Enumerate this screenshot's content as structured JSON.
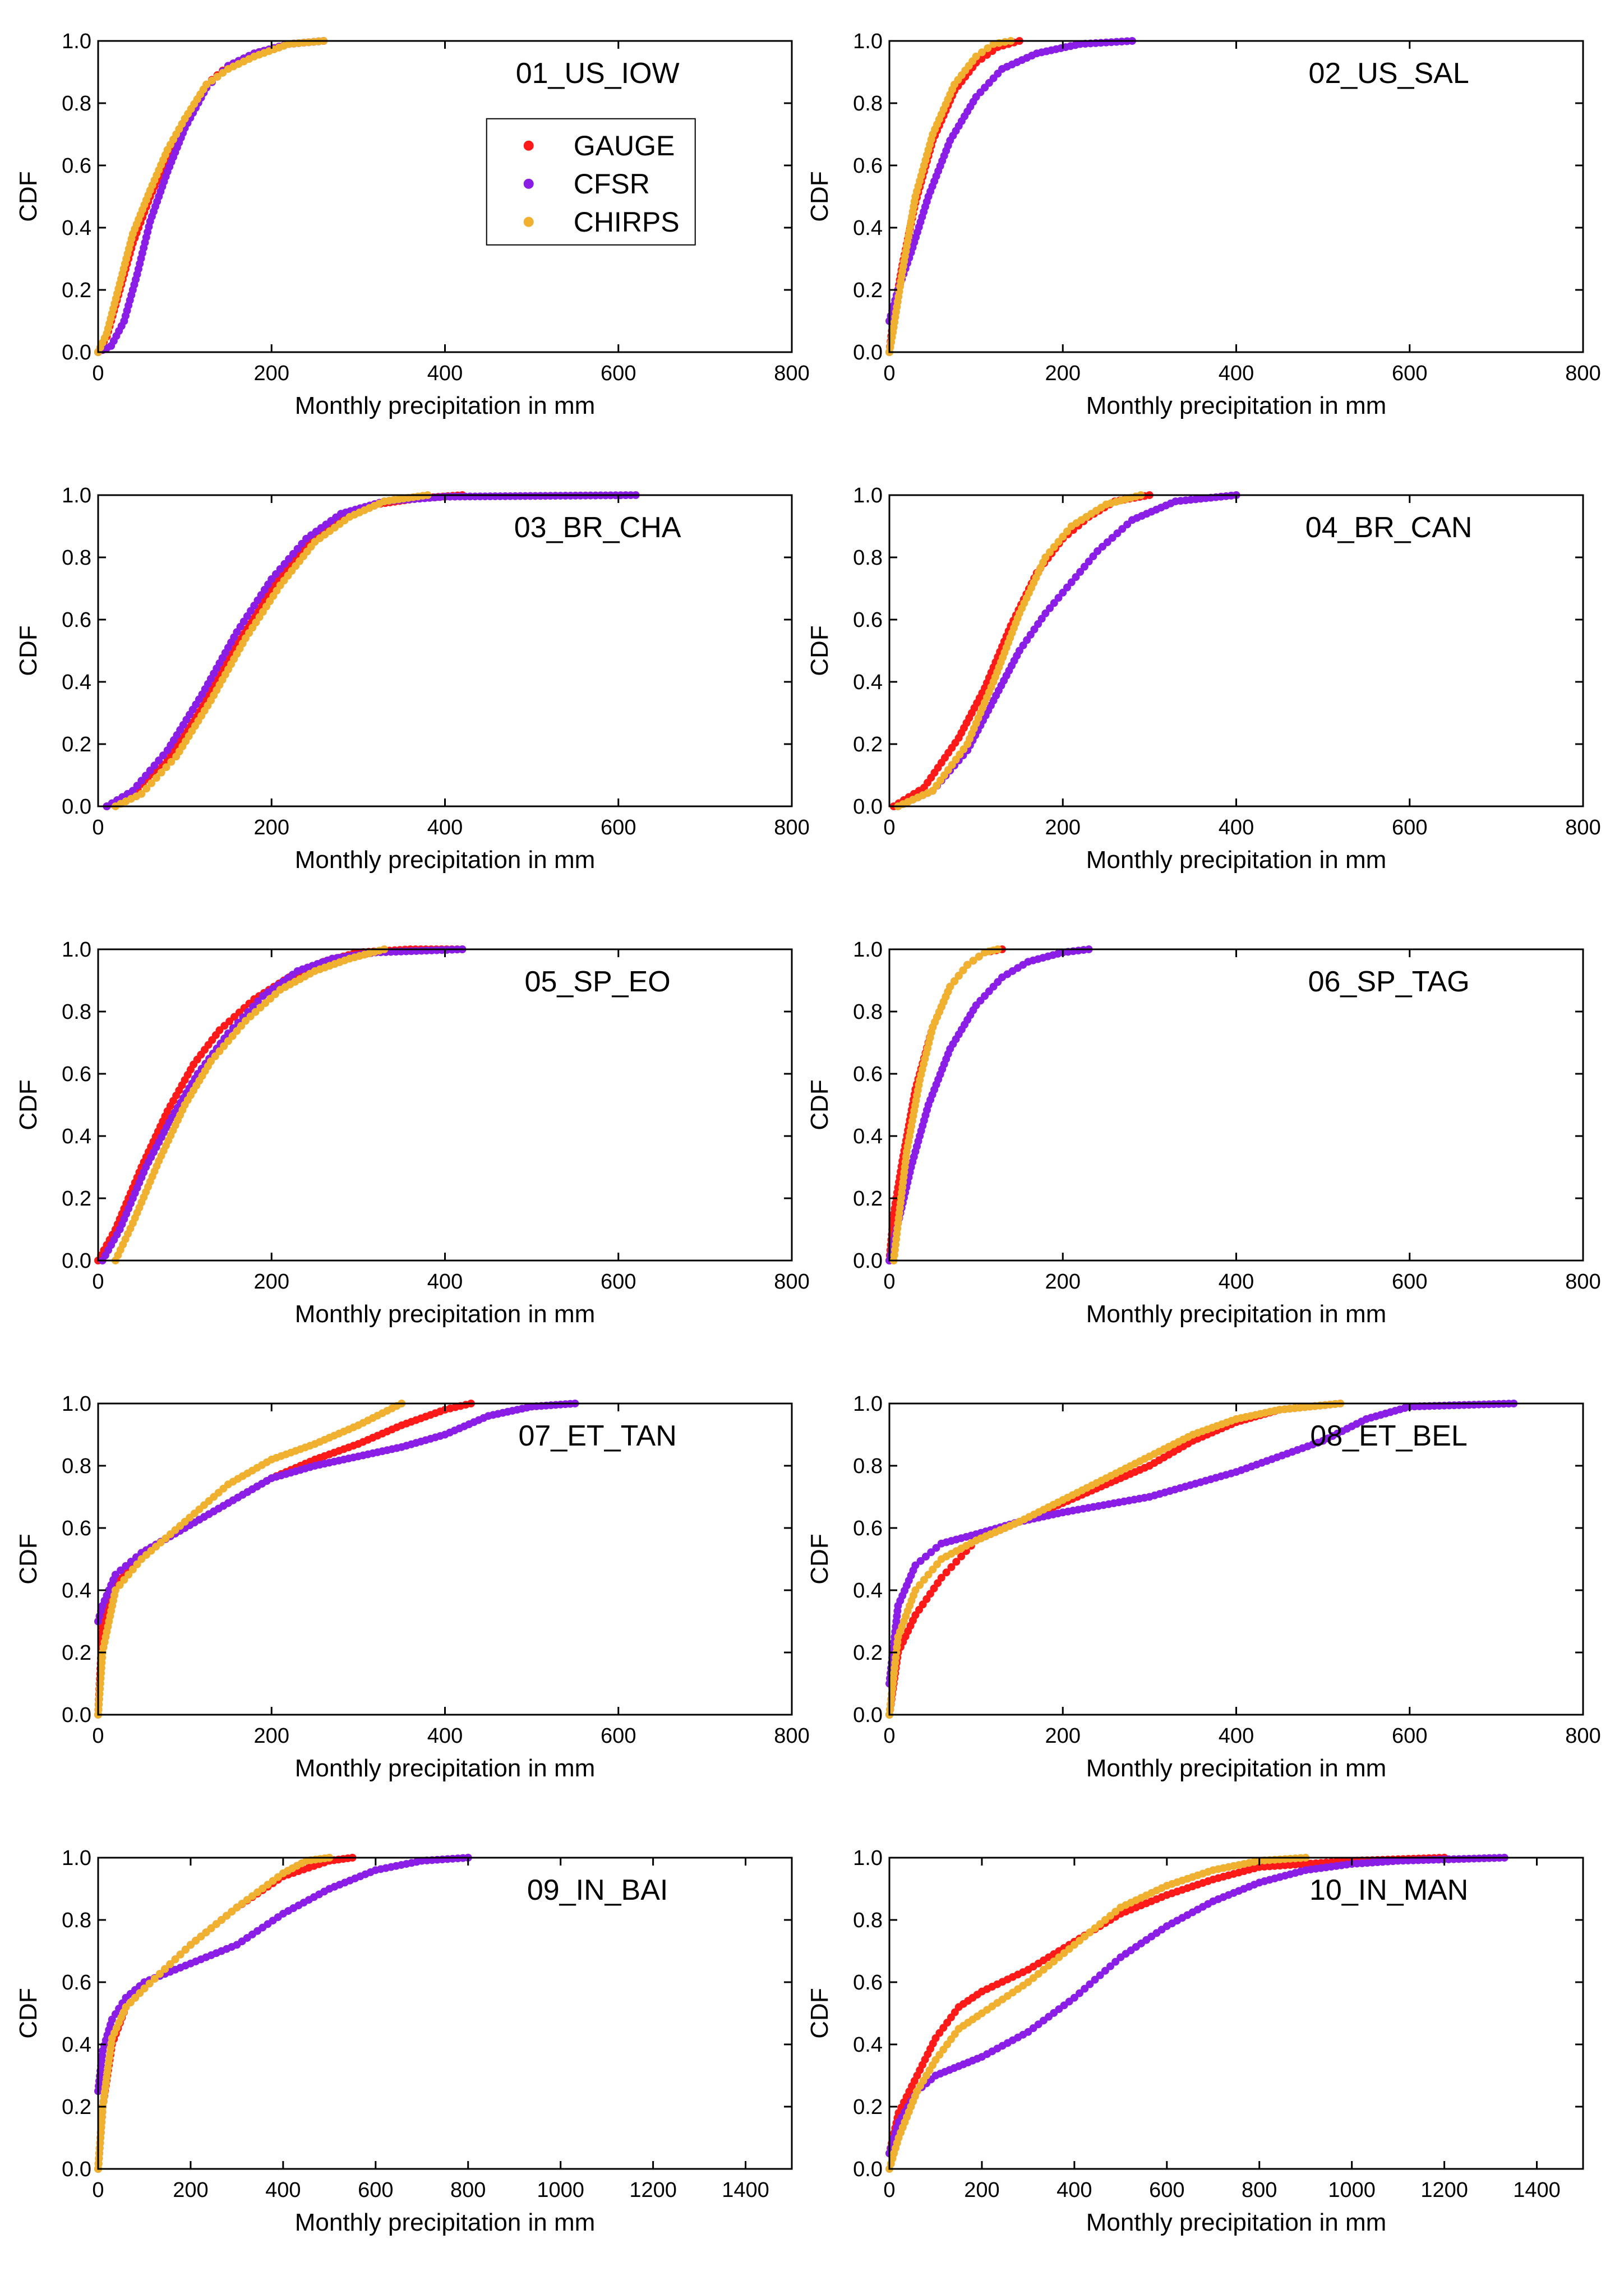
{
  "figure": {
    "colors": {
      "GAUGE": "#ff1a1a",
      "CFSR": "#8a1ee6",
      "CHIRPS": "#f0b030"
    },
    "legend": {
      "entries": [
        "GAUGE",
        "CFSR",
        "CHIRPS"
      ],
      "placement": "inside panel 01_US_IOW, upper-center-right"
    }
  },
  "chart_data": [
    {
      "type": "scatter",
      "title": "01_US_IOW",
      "xlabel": "Monthly precipitation in mm",
      "ylabel": "CDF",
      "xlim": [
        0,
        800
      ],
      "ylim": [
        0,
        1
      ],
      "xticks": [
        "0",
        "200",
        "400",
        "600",
        "800"
      ],
      "yticks": [
        "0.0",
        "0.2",
        "0.4",
        "0.6",
        "0.8",
        "1.0"
      ],
      "series": [
        {
          "name": "GAUGE",
          "x": [
            0,
            10,
            25,
            40,
            60,
            80,
            100,
            125,
            150,
            180,
            220,
            260
          ],
          "y": [
            0,
            0.05,
            0.2,
            0.35,
            0.5,
            0.63,
            0.74,
            0.86,
            0.92,
            0.96,
            0.99,
            1.0
          ]
        },
        {
          "name": "CFSR",
          "x": [
            0,
            15,
            30,
            45,
            60,
            80,
            100,
            125,
            150,
            180,
            220,
            260
          ],
          "y": [
            0,
            0.02,
            0.1,
            0.25,
            0.42,
            0.58,
            0.72,
            0.85,
            0.92,
            0.96,
            0.99,
            1.0
          ]
        },
        {
          "name": "CHIRPS",
          "x": [
            0,
            10,
            25,
            40,
            60,
            80,
            100,
            125,
            150,
            180,
            220,
            260
          ],
          "y": [
            0,
            0.06,
            0.22,
            0.38,
            0.52,
            0.65,
            0.75,
            0.86,
            0.91,
            0.95,
            0.99,
            1.0
          ]
        }
      ]
    },
    {
      "type": "scatter",
      "title": "02_US_SAL",
      "xlabel": "Monthly precipitation in mm",
      "ylabel": "CDF",
      "xlim": [
        0,
        800
      ],
      "ylim": [
        0,
        1
      ],
      "xticks": [
        "0",
        "200",
        "400",
        "600",
        "800"
      ],
      "yticks": [
        "0.0",
        "0.2",
        "0.4",
        "0.6",
        "0.8",
        "1.0"
      ],
      "series": [
        {
          "name": "GAUGE",
          "x": [
            0,
            5,
            15,
            30,
            50,
            75,
            100,
            125,
            150
          ],
          "y": [
            0,
            0.12,
            0.28,
            0.48,
            0.68,
            0.84,
            0.93,
            0.98,
            1.0
          ]
        },
        {
          "name": "CFSR",
          "x": [
            0,
            10,
            25,
            45,
            70,
            100,
            130,
            170,
            220,
            280
          ],
          "y": [
            0.1,
            0.2,
            0.32,
            0.5,
            0.68,
            0.82,
            0.91,
            0.96,
            0.99,
            1.0
          ]
        },
        {
          "name": "CHIRPS",
          "x": [
            0,
            5,
            15,
            30,
            50,
            75,
            100,
            120,
            140
          ],
          "y": [
            0,
            0.08,
            0.26,
            0.5,
            0.7,
            0.86,
            0.95,
            0.99,
            1.0
          ]
        }
      ]
    },
    {
      "type": "scatter",
      "title": "03_BR_CHA",
      "xlabel": "Monthly precipitation in mm",
      "ylabel": "CDF",
      "xlim": [
        0,
        800
      ],
      "ylim": [
        0,
        1
      ],
      "xticks": [
        "0",
        "200",
        "400",
        "600",
        "800"
      ],
      "yticks": [
        "0.0",
        "0.2",
        "0.4",
        "0.6",
        "0.8",
        "1.0"
      ],
      "series": [
        {
          "name": "GAUGE",
          "x": [
            10,
            40,
            80,
            120,
            160,
            200,
            240,
            280,
            320,
            370,
            420
          ],
          "y": [
            0,
            0.04,
            0.15,
            0.32,
            0.52,
            0.7,
            0.84,
            0.93,
            0.97,
            0.99,
            1.0
          ]
        },
        {
          "name": "CFSR",
          "x": [
            10,
            40,
            80,
            120,
            160,
            200,
            240,
            280,
            330,
            400,
            620
          ],
          "y": [
            0,
            0.05,
            0.18,
            0.36,
            0.56,
            0.73,
            0.86,
            0.94,
            0.98,
            0.995,
            1.0
          ]
        },
        {
          "name": "CHIRPS",
          "x": [
            20,
            50,
            90,
            130,
            170,
            210,
            250,
            290,
            330,
            380
          ],
          "y": [
            0,
            0.04,
            0.16,
            0.34,
            0.54,
            0.71,
            0.85,
            0.93,
            0.98,
            1.0
          ]
        }
      ]
    },
    {
      "type": "scatter",
      "title": "04_BR_CAN",
      "xlabel": "Monthly precipitation in mm",
      "ylabel": "CDF",
      "xlim": [
        0,
        800
      ],
      "ylim": [
        0,
        1
      ],
      "xticks": [
        "0",
        "200",
        "400",
        "600",
        "800"
      ],
      "yticks": [
        "0.0",
        "0.2",
        "0.4",
        "0.6",
        "0.8",
        "1.0"
      ],
      "series": [
        {
          "name": "GAUGE",
          "x": [
            5,
            40,
            80,
            110,
            140,
            170,
            200,
            230,
            260,
            300
          ],
          "y": [
            0,
            0.06,
            0.22,
            0.38,
            0.58,
            0.75,
            0.86,
            0.93,
            0.98,
            1.0
          ]
        },
        {
          "name": "CFSR",
          "x": [
            10,
            50,
            90,
            120,
            150,
            180,
            210,
            240,
            280,
            330,
            400
          ],
          "y": [
            0,
            0.05,
            0.18,
            0.34,
            0.5,
            0.62,
            0.72,
            0.82,
            0.92,
            0.98,
            1.0
          ]
        },
        {
          "name": "CHIRPS",
          "x": [
            10,
            50,
            90,
            120,
            150,
            180,
            210,
            250,
            290
          ],
          "y": [
            0,
            0.05,
            0.2,
            0.4,
            0.62,
            0.8,
            0.9,
            0.97,
            1.0
          ]
        }
      ]
    },
    {
      "type": "scatter",
      "title": "05_SP_EO",
      "xlabel": "Monthly precipitation in mm",
      "ylabel": "CDF",
      "xlim": [
        0,
        800
      ],
      "ylim": [
        0,
        1
      ],
      "xticks": [
        "0",
        "200",
        "400",
        "600",
        "800"
      ],
      "yticks": [
        "0.0",
        "0.2",
        "0.4",
        "0.6",
        "0.8",
        "1.0"
      ],
      "series": [
        {
          "name": "GAUGE",
          "x": [
            0,
            20,
            50,
            80,
            110,
            140,
            180,
            220,
            260,
            300,
            360,
            420
          ],
          "y": [
            0,
            0.1,
            0.3,
            0.48,
            0.63,
            0.74,
            0.84,
            0.91,
            0.96,
            0.99,
            1.0,
            1.0
          ]
        },
        {
          "name": "CFSR",
          "x": [
            5,
            25,
            55,
            85,
            115,
            150,
            190,
            230,
            270,
            320,
            420
          ],
          "y": [
            0,
            0.1,
            0.3,
            0.46,
            0.6,
            0.73,
            0.85,
            0.93,
            0.97,
            0.99,
            1.0
          ]
        },
        {
          "name": "CHIRPS",
          "x": [
            20,
            40,
            70,
            100,
            130,
            170,
            210,
            250,
            290,
            330
          ],
          "y": [
            0,
            0.12,
            0.32,
            0.5,
            0.64,
            0.77,
            0.87,
            0.93,
            0.97,
            1.0
          ]
        }
      ]
    },
    {
      "type": "scatter",
      "title": "06_SP_TAG",
      "xlabel": "Monthly precipitation in mm",
      "ylabel": "CDF",
      "xlim": [
        0,
        800
      ],
      "ylim": [
        0,
        1
      ],
      "xticks": [
        "0",
        "200",
        "400",
        "600",
        "800"
      ],
      "yticks": [
        "0.0",
        "0.2",
        "0.4",
        "0.6",
        "0.8",
        "1.0"
      ],
      "series": [
        {
          "name": "GAUGE",
          "x": [
            0,
            5,
            15,
            30,
            50,
            70,
            90,
            110,
            130
          ],
          "y": [
            0,
            0.15,
            0.32,
            0.55,
            0.75,
            0.88,
            0.95,
            0.99,
            1.0
          ]
        },
        {
          "name": "CFSR",
          "x": [
            0,
            10,
            25,
            45,
            70,
            100,
            130,
            160,
            200,
            230
          ],
          "y": [
            0,
            0.12,
            0.3,
            0.5,
            0.68,
            0.82,
            0.91,
            0.96,
            0.99,
            1.0
          ]
        },
        {
          "name": "CHIRPS",
          "x": [
            5,
            10,
            20,
            35,
            50,
            70,
            90,
            110,
            125
          ],
          "y": [
            0,
            0.12,
            0.35,
            0.58,
            0.75,
            0.88,
            0.95,
            0.99,
            1.0
          ]
        }
      ]
    },
    {
      "type": "scatter",
      "title": "07_ET_TAN",
      "xlabel": "Monthly precipitation in mm",
      "ylabel": "CDF",
      "xlim": [
        0,
        800
      ],
      "ylim": [
        0,
        1
      ],
      "xticks": [
        "0",
        "200",
        "400",
        "600",
        "800"
      ],
      "yticks": [
        "0.0",
        "0.2",
        "0.4",
        "0.6",
        "0.8",
        "1.0"
      ],
      "series": [
        {
          "name": "GAUGE",
          "x": [
            0,
            5,
            20,
            50,
            100,
            150,
            200,
            250,
            300,
            350,
            400,
            430
          ],
          "y": [
            0,
            0.28,
            0.42,
            0.52,
            0.6,
            0.68,
            0.76,
            0.82,
            0.87,
            0.93,
            0.98,
            1.0
          ]
        },
        {
          "name": "CFSR",
          "x": [
            0,
            5,
            20,
            50,
            100,
            150,
            200,
            250,
            300,
            350,
            400,
            450,
            500,
            550
          ],
          "y": [
            0.3,
            0.35,
            0.45,
            0.52,
            0.6,
            0.68,
            0.76,
            0.8,
            0.83,
            0.86,
            0.9,
            0.96,
            0.99,
            1.0
          ]
        },
        {
          "name": "CHIRPS",
          "x": [
            0,
            5,
            20,
            50,
            100,
            150,
            200,
            250,
            300,
            350
          ],
          "y": [
            0,
            0.2,
            0.4,
            0.5,
            0.62,
            0.74,
            0.82,
            0.87,
            0.93,
            1.0
          ]
        }
      ]
    },
    {
      "type": "scatter",
      "title": "08_ET_BEL",
      "xlabel": "Monthly precipitation in mm",
      "ylabel": "CDF",
      "xlim": [
        0,
        800
      ],
      "ylim": [
        0,
        1
      ],
      "xticks": [
        "0",
        "200",
        "400",
        "600",
        "800"
      ],
      "yticks": [
        "0.0",
        "0.2",
        "0.4",
        "0.6",
        "0.8",
        "1.0"
      ],
      "series": [
        {
          "name": "GAUGE",
          "x": [
            0,
            10,
            30,
            60,
            100,
            150,
            200,
            250,
            300,
            350,
            400,
            450,
            520
          ],
          "y": [
            0,
            0.2,
            0.32,
            0.44,
            0.56,
            0.62,
            0.68,
            0.74,
            0.8,
            0.88,
            0.94,
            0.98,
            1.0
          ]
        },
        {
          "name": "CFSR",
          "x": [
            0,
            10,
            30,
            60,
            100,
            150,
            200,
            300,
            400,
            500,
            550,
            600,
            720
          ],
          "y": [
            0.1,
            0.35,
            0.48,
            0.55,
            0.58,
            0.62,
            0.65,
            0.7,
            0.78,
            0.88,
            0.95,
            0.99,
            1.0
          ]
        },
        {
          "name": "CHIRPS",
          "x": [
            0,
            10,
            30,
            60,
            100,
            150,
            200,
            250,
            300,
            350,
            400,
            450,
            520
          ],
          "y": [
            0,
            0.25,
            0.4,
            0.5,
            0.56,
            0.62,
            0.69,
            0.76,
            0.83,
            0.9,
            0.95,
            0.98,
            1.0
          ]
        }
      ]
    },
    {
      "type": "scatter",
      "title": "09_IN_BAI",
      "xlabel": "Monthly precipitation in mm",
      "ylabel": "CDF",
      "xlim": [
        0,
        1500
      ],
      "ylim": [
        0,
        1
      ],
      "xticks": [
        "0",
        "200",
        "400",
        "600",
        "800",
        "1000",
        "1200",
        "1400"
      ],
      "yticks": [
        "0.0",
        "0.2",
        "0.4",
        "0.6",
        "0.8",
        "1.0"
      ],
      "series": [
        {
          "name": "GAUGE",
          "x": [
            0,
            10,
            30,
            60,
            100,
            200,
            300,
            400,
            500,
            550
          ],
          "y": [
            0,
            0.2,
            0.4,
            0.52,
            0.58,
            0.72,
            0.84,
            0.94,
            0.99,
            1.0
          ]
        },
        {
          "name": "CFSR",
          "x": [
            0,
            10,
            30,
            60,
            100,
            200,
            300,
            400,
            500,
            600,
            700,
            800
          ],
          "y": [
            0.25,
            0.38,
            0.48,
            0.55,
            0.6,
            0.66,
            0.72,
            0.82,
            0.9,
            0.96,
            0.99,
            1.0
          ]
        },
        {
          "name": "CHIRPS",
          "x": [
            0,
            10,
            30,
            60,
            100,
            200,
            300,
            400,
            450,
            500
          ],
          "y": [
            0,
            0.2,
            0.42,
            0.52,
            0.58,
            0.72,
            0.84,
            0.95,
            0.99,
            1.0
          ]
        }
      ]
    },
    {
      "type": "scatter",
      "title": "10_IN_MAN",
      "xlabel": "Monthly precipitation in mm",
      "ylabel": "CDF",
      "xlim": [
        0,
        1500
      ],
      "ylim": [
        0,
        1
      ],
      "xticks": [
        "0",
        "200",
        "400",
        "600",
        "800",
        "1000",
        "1200",
        "1400"
      ],
      "yticks": [
        "0.0",
        "0.2",
        "0.4",
        "0.6",
        "0.8",
        "1.0"
      ],
      "series": [
        {
          "name": "GAUGE",
          "x": [
            0,
            20,
            60,
            100,
            150,
            200,
            300,
            400,
            500,
            600,
            700,
            800,
            1000,
            1200
          ],
          "y": [
            0.05,
            0.18,
            0.3,
            0.42,
            0.52,
            0.57,
            0.64,
            0.73,
            0.82,
            0.88,
            0.93,
            0.97,
            0.99,
            1.0
          ]
        },
        {
          "name": "CFSR",
          "x": [
            0,
            20,
            60,
            100,
            150,
            200,
            300,
            400,
            500,
            600,
            700,
            800,
            900,
            1000,
            1100,
            1330
          ],
          "y": [
            0.05,
            0.15,
            0.25,
            0.3,
            0.33,
            0.36,
            0.44,
            0.55,
            0.68,
            0.78,
            0.86,
            0.92,
            0.96,
            0.98,
            0.99,
            1.0
          ]
        },
        {
          "name": "CHIRPS",
          "x": [
            0,
            20,
            60,
            100,
            150,
            200,
            300,
            400,
            500,
            600,
            700,
            800,
            900
          ],
          "y": [
            0,
            0.1,
            0.25,
            0.35,
            0.45,
            0.5,
            0.6,
            0.72,
            0.84,
            0.91,
            0.96,
            0.99,
            1.0
          ]
        }
      ]
    }
  ]
}
